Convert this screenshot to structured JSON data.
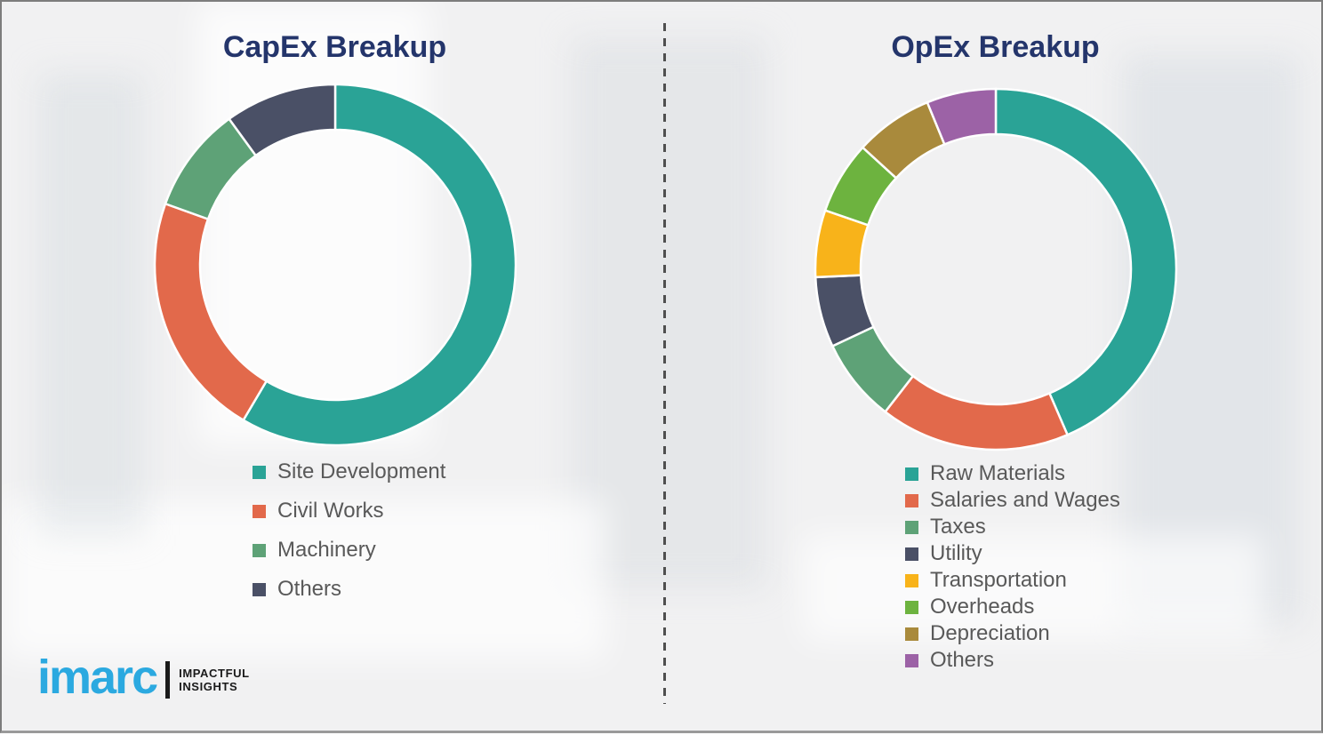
{
  "page": {
    "background_color": "#f1f1f2",
    "title_color": "#24356b",
    "legend_text_color": "#595959",
    "divider_color": "#4f4f4f"
  },
  "chart_data": [
    {
      "type": "pie",
      "subtype": "donut",
      "title": "CapEx Breakup",
      "legend_position": "bottom-left",
      "data_labels": "none",
      "categories": [
        "Site Development",
        "Civil Works",
        "Machinery",
        "Others"
      ],
      "values": [
        58.5,
        22,
        9.5,
        10
      ],
      "colors": [
        "#2aa396",
        "#e2694b",
        "#5ea277",
        "#4a5066"
      ],
      "start_angle_deg": 0,
      "direction": "clockwise"
    },
    {
      "type": "pie",
      "subtype": "donut",
      "title": "OpEx Breakup",
      "legend_position": "bottom-left",
      "data_labels": "none",
      "categories": [
        "Raw Materials",
        "Salaries and Wages",
        "Taxes",
        "Utility",
        "Transportation",
        "Overheads",
        "Depreciation",
        "Others"
      ],
      "values": [
        43.5,
        17,
        7.5,
        6.3,
        6,
        6.5,
        7,
        6.2
      ],
      "colors": [
        "#2aa396",
        "#e2694b",
        "#5ea277",
        "#4a5066",
        "#f8b31a",
        "#6db33f",
        "#a98a3c",
        "#9c62a6"
      ],
      "start_angle_deg": 0,
      "direction": "clockwise"
    }
  ],
  "logo": {
    "brand": "imarc",
    "brand_color": "#2ba9e0",
    "tagline_line1": "IMPACTFUL",
    "tagline_line2": "INSIGHTS"
  }
}
